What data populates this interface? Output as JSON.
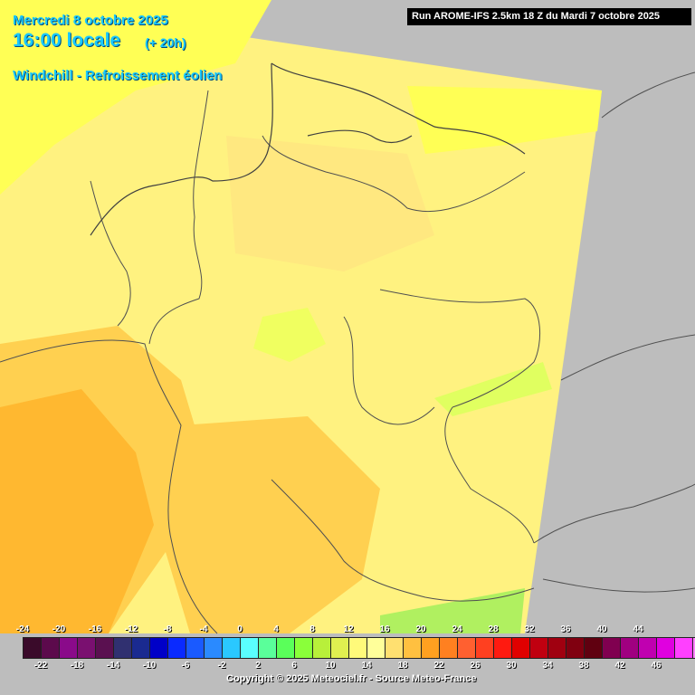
{
  "header": {
    "date": "Mercredi 8 octobre 2025",
    "time": "16:00 locale",
    "offset": "(+ 20h)",
    "parameter": "Windchill - Refroissement éolien"
  },
  "run_label": "Run AROME-IFS 2.5km 18 Z du Mardi 7 octobre 2025",
  "copyright": "Copyright © 2025 Meteociel.fr - Source Meteo-France",
  "legend": {
    "upper_ticks": [
      "-24",
      "-20",
      "-16",
      "-12",
      "-8",
      "-4",
      "0",
      "4",
      "8",
      "12",
      "16",
      "20",
      "24",
      "28",
      "32",
      "36",
      "40",
      "44"
    ],
    "lower_ticks": [
      "-22",
      "-18",
      "-14",
      "-10",
      "-6",
      "-2",
      "2",
      "6",
      "10",
      "14",
      "18",
      "22",
      "26",
      "30",
      "34",
      "38",
      "42",
      "46"
    ],
    "colors": [
      "#3a0a2a",
      "#5c0a4c",
      "#8a0a8a",
      "#7a1070",
      "#5a1050",
      "#303070",
      "#1a2a90",
      "#0000c8",
      "#0a2aff",
      "#1a5aff",
      "#2a8aff",
      "#2ac8ff",
      "#5affff",
      "#5aff9a",
      "#5aff5a",
      "#8aff3a",
      "#b8f03a",
      "#e0f050",
      "#fffa7a",
      "#ffff9a",
      "#ffe070",
      "#ffc040",
      "#ffa020",
      "#ff8020",
      "#ff6030",
      "#ff4020",
      "#ff1a10",
      "#e00000",
      "#c00010",
      "#a00010",
      "#800010",
      "#600010",
      "#800050",
      "#a00080",
      "#c000b0",
      "#e000e0",
      "#ff40ff",
      "#ff80ff"
    ]
  }
}
